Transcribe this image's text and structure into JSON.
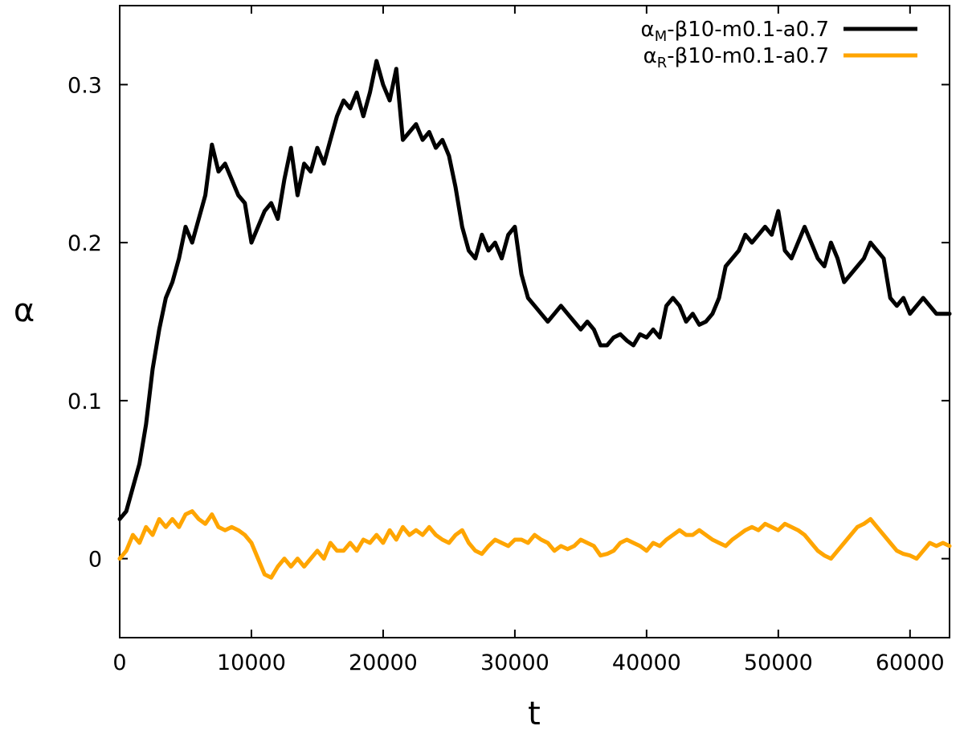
{
  "chart_data": {
    "type": "line",
    "title": "",
    "xlabel": "t",
    "ylabel": "α",
    "xlim": [
      0,
      63000
    ],
    "ylim": [
      -0.05,
      0.35
    ],
    "xticks": [
      0,
      10000,
      20000,
      30000,
      40000,
      50000,
      60000
    ],
    "xtick_labels": [
      "0",
      "10000",
      "20000",
      "30000",
      "40000",
      "50000",
      "60000"
    ],
    "yticks": [
      0,
      0.1,
      0.2,
      0.3
    ],
    "ytick_labels": [
      "0",
      "0.1",
      "0.2",
      "0.3"
    ],
    "grid": false,
    "legend_position": "top-right",
    "series": [
      {
        "name": "αM-β10-m0.1-a0.7",
        "label_base": "α",
        "label_sub": "M",
        "label_rest": "-β10-m0.1-a0.7",
        "color": "#000000",
        "x": [
          0,
          500,
          1000,
          1500,
          2000,
          2500,
          3000,
          3500,
          4000,
          4500,
          5000,
          5500,
          6000,
          6500,
          7000,
          7500,
          8000,
          8500,
          9000,
          9500,
          10000,
          10500,
          11000,
          11500,
          12000,
          12500,
          13000,
          13500,
          14000,
          14500,
          15000,
          15500,
          16000,
          16500,
          17000,
          17500,
          18000,
          18500,
          19000,
          19500,
          20000,
          20500,
          21000,
          21500,
          22000,
          22500,
          23000,
          23500,
          24000,
          24500,
          25000,
          25500,
          26000,
          26500,
          27000,
          27500,
          28000,
          28500,
          29000,
          29500,
          30000,
          30500,
          31000,
          31500,
          32000,
          32500,
          33000,
          33500,
          34000,
          34500,
          35000,
          35500,
          36000,
          36500,
          37000,
          37500,
          38000,
          38500,
          39000,
          39500,
          40000,
          40500,
          41000,
          41500,
          42000,
          42500,
          43000,
          43500,
          44000,
          44500,
          45000,
          45500,
          46000,
          46500,
          47000,
          47500,
          48000,
          48500,
          49000,
          49500,
          50000,
          50500,
          51000,
          51500,
          52000,
          52500,
          53000,
          53500,
          54000,
          54500,
          55000,
          55500,
          56000,
          56500,
          57000,
          57500,
          58000,
          58500,
          59000,
          59500,
          60000,
          60500,
          61000,
          61500,
          62000,
          62500,
          63000
        ],
        "y": [
          0.025,
          0.03,
          0.045,
          0.06,
          0.085,
          0.12,
          0.145,
          0.165,
          0.175,
          0.19,
          0.21,
          0.2,
          0.215,
          0.23,
          0.262,
          0.245,
          0.25,
          0.24,
          0.23,
          0.225,
          0.2,
          0.21,
          0.22,
          0.225,
          0.215,
          0.24,
          0.26,
          0.23,
          0.25,
          0.245,
          0.26,
          0.25,
          0.265,
          0.28,
          0.29,
          0.285,
          0.295,
          0.28,
          0.295,
          0.315,
          0.3,
          0.29,
          0.31,
          0.265,
          0.27,
          0.275,
          0.265,
          0.27,
          0.26,
          0.265,
          0.255,
          0.235,
          0.21,
          0.195,
          0.19,
          0.205,
          0.195,
          0.2,
          0.19,
          0.205,
          0.21,
          0.18,
          0.165,
          0.16,
          0.155,
          0.15,
          0.155,
          0.16,
          0.155,
          0.15,
          0.145,
          0.15,
          0.145,
          0.135,
          0.135,
          0.14,
          0.142,
          0.138,
          0.135,
          0.142,
          0.14,
          0.145,
          0.14,
          0.16,
          0.165,
          0.16,
          0.15,
          0.155,
          0.148,
          0.15,
          0.155,
          0.165,
          0.185,
          0.19,
          0.195,
          0.205,
          0.2,
          0.205,
          0.21,
          0.205,
          0.22,
          0.195,
          0.19,
          0.2,
          0.21,
          0.2,
          0.19,
          0.185,
          0.2,
          0.19,
          0.175,
          0.18,
          0.185,
          0.19,
          0.2,
          0.195,
          0.19,
          0.165,
          0.16,
          0.165,
          0.155,
          0.16,
          0.165,
          0.16,
          0.155,
          0.155,
          0.155
        ]
      },
      {
        "name": "αR-β10-m0.1-a0.7",
        "label_base": "α",
        "label_sub": "R",
        "label_rest": "-β10-m0.1-a0.7",
        "color": "#FFA500",
        "x": [
          0,
          500,
          1000,
          1500,
          2000,
          2500,
          3000,
          3500,
          4000,
          4500,
          5000,
          5500,
          6000,
          6500,
          7000,
          7500,
          8000,
          8500,
          9000,
          9500,
          10000,
          10500,
          11000,
          11500,
          12000,
          12500,
          13000,
          13500,
          14000,
          14500,
          15000,
          15500,
          16000,
          16500,
          17000,
          17500,
          18000,
          18500,
          19000,
          19500,
          20000,
          20500,
          21000,
          21500,
          22000,
          22500,
          23000,
          23500,
          24000,
          24500,
          25000,
          25500,
          26000,
          26500,
          27000,
          27500,
          28000,
          28500,
          29000,
          29500,
          30000,
          30500,
          31000,
          31500,
          32000,
          32500,
          33000,
          33500,
          34000,
          34500,
          35000,
          35500,
          36000,
          36500,
          37000,
          37500,
          38000,
          38500,
          39000,
          39500,
          40000,
          40500,
          41000,
          41500,
          42000,
          42500,
          43000,
          43500,
          44000,
          44500,
          45000,
          45500,
          46000,
          46500,
          47000,
          47500,
          48000,
          48500,
          49000,
          49500,
          50000,
          50500,
          51000,
          51500,
          52000,
          52500,
          53000,
          53500,
          54000,
          54500,
          55000,
          55500,
          56000,
          56500,
          57000,
          57500,
          58000,
          58500,
          59000,
          59500,
          60000,
          60500,
          61000,
          61500,
          62000,
          62500,
          63000
        ],
        "y": [
          0,
          0.005,
          0.015,
          0.01,
          0.02,
          0.015,
          0.025,
          0.02,
          0.025,
          0.02,
          0.028,
          0.03,
          0.025,
          0.022,
          0.028,
          0.02,
          0.018,
          0.02,
          0.018,
          0.015,
          0.01,
          0,
          -0.01,
          -0.012,
          -0.005,
          0,
          -0.005,
          0,
          -0.005,
          0,
          0.005,
          0,
          0.01,
          0.005,
          0.005,
          0.01,
          0.005,
          0.012,
          0.01,
          0.015,
          0.01,
          0.018,
          0.012,
          0.02,
          0.015,
          0.018,
          0.015,
          0.02,
          0.015,
          0.012,
          0.01,
          0.015,
          0.018,
          0.01,
          0.005,
          0.003,
          0.008,
          0.012,
          0.01,
          0.008,
          0.012,
          0.012,
          0.01,
          0.015,
          0.012,
          0.01,
          0.005,
          0.008,
          0.006,
          0.008,
          0.012,
          0.01,
          0.008,
          0.002,
          0.003,
          0.005,
          0.01,
          0.012,
          0.01,
          0.008,
          0.005,
          0.01,
          0.008,
          0.012,
          0.015,
          0.018,
          0.015,
          0.015,
          0.018,
          0.015,
          0.012,
          0.01,
          0.008,
          0.012,
          0.015,
          0.018,
          0.02,
          0.018,
          0.022,
          0.02,
          0.018,
          0.022,
          0.02,
          0.018,
          0.015,
          0.01,
          0.005,
          0.002,
          0,
          0.005,
          0.01,
          0.015,
          0.02,
          0.022,
          0.025,
          0.02,
          0.015,
          0.01,
          0.005,
          0.003,
          0.002,
          0,
          0.005,
          0.01,
          0.008,
          0.01,
          0.008
        ]
      }
    ]
  }
}
